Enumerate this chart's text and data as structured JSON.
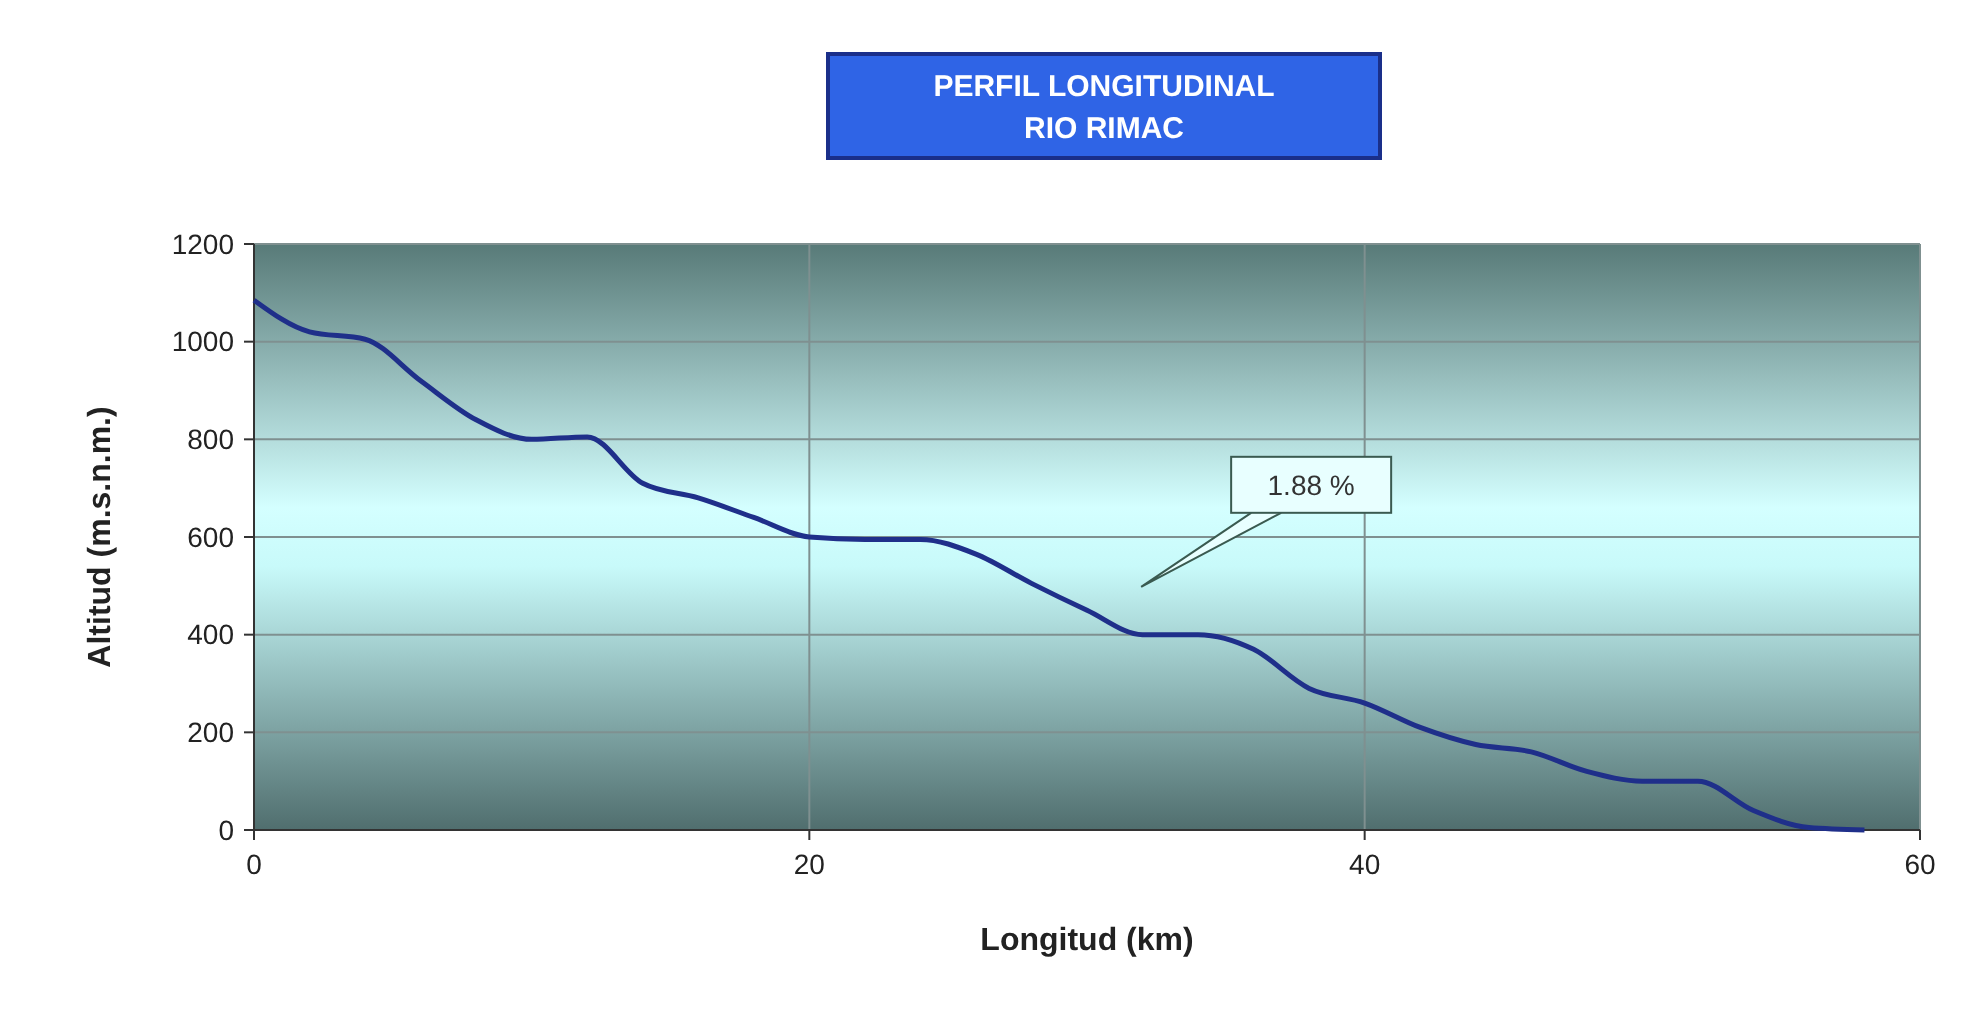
{
  "chart_data": {
    "type": "line",
    "title": "PERFIL LONGITUDINAL\nRIO RIMAC",
    "xlabel": "Longitud (km)",
    "ylabel": "Altitud (m.s.n.m.)",
    "x": [
      0,
      2,
      4,
      6,
      8,
      10,
      12,
      14,
      16,
      18,
      20,
      22,
      24,
      26,
      28,
      30,
      32,
      34,
      36,
      38,
      40,
      42,
      44,
      46,
      48,
      50,
      52,
      54,
      56,
      58
    ],
    "series": [
      {
        "color": "#1f2f8a",
        "values": [
          1085,
          1020,
          1005,
          920,
          840,
          800,
          805,
          710,
          680,
          640,
          600,
          595,
          595,
          565,
          505,
          450,
          400,
          400,
          370,
          290,
          260,
          210,
          175,
          160,
          120,
          100,
          100,
          40,
          5,
          0
        ]
      }
    ],
    "xlim": [
      0,
      60
    ],
    "xticks": [
      0,
      20,
      40,
      60
    ],
    "ylim": [
      0,
      1200
    ],
    "yticks": [
      0,
      200,
      400,
      600,
      800,
      1000,
      1200
    ],
    "grid": true,
    "marker": "none",
    "line_style": "solid",
    "annotations": [
      "1.88 %"
    ]
  }
}
